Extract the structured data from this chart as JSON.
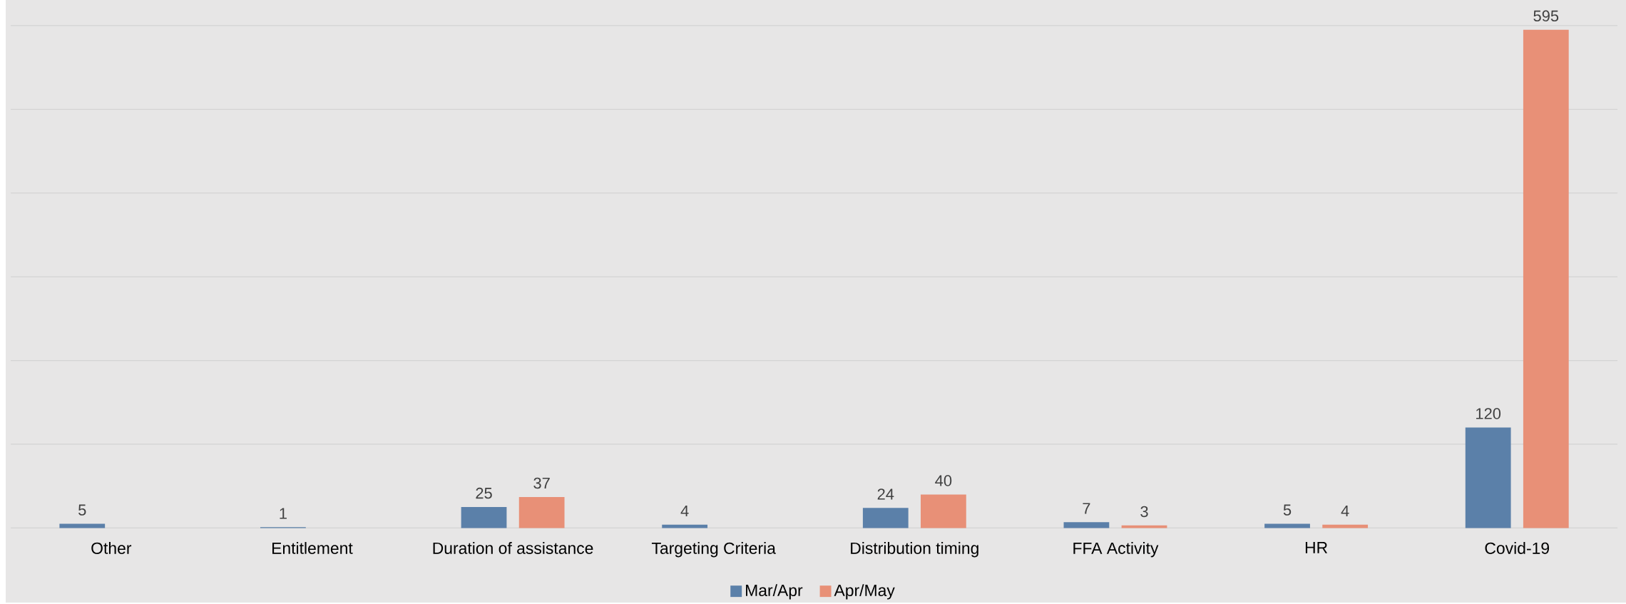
{
  "chart_data": {
    "type": "bar",
    "categories": [
      "Other",
      "Entitlement",
      "Duration of assistance",
      "Targeting Criteria",
      "Distribution timing",
      "FFA Activity",
      "HR",
      "Covid-19"
    ],
    "series": [
      {
        "name": "Mar/Apr",
        "color": "#5b80a9",
        "values": [
          5,
          1,
          25,
          4,
          24,
          7,
          5,
          120
        ]
      },
      {
        "name": "Apr/May",
        "color": "#e89077",
        "values": [
          null,
          null,
          37,
          null,
          40,
          3,
          4,
          595
        ]
      }
    ],
    "ylim": [
      0,
      600
    ],
    "yticks": [
      {
        "value": 0,
        "label": null
      },
      {
        "value": 100,
        "label": null
      },
      {
        "value": 200,
        "label": null
      },
      {
        "value": 300,
        "label": null
      },
      {
        "value": 400,
        "label": null
      },
      {
        "value": 500,
        "label": null
      },
      {
        "value": 600,
        "label": null
      }
    ],
    "tick_labels": "x",
    "grid": "y",
    "legend": "bottom",
    "data_labels": true
  }
}
